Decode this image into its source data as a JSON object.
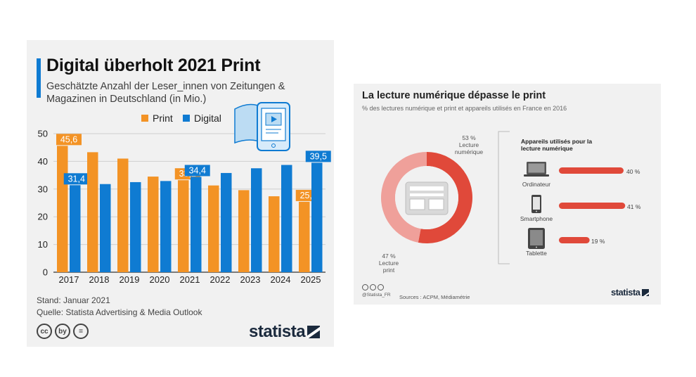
{
  "left": {
    "title": "Digital überholt 2021 Print",
    "subtitle": "Geschätzte Anzahl der Leser_innen von Zeitungen & Magazinen in Deutschland (in Mio.)",
    "legend_print": "Print",
    "legend_digital": "Digital",
    "stand": "Stand: Januar 2021",
    "quelle": "Quelle: Statista Advertising & Media Outlook",
    "brand": "statista",
    "cc_icons": [
      "cc",
      "by",
      "="
    ]
  },
  "right": {
    "title": "La lecture numérique dépasse le print",
    "subtitle": "% des lectures numérique et print et appareils utilisés en France en 2016",
    "digital_pct": "53 %",
    "digital_label_1": "Lecture",
    "digital_label_2": "numérique",
    "print_pct": "47 %",
    "print_label_1": "Lecture",
    "print_label_2": "print",
    "devices_header_1": "Appareils utilisés pour la",
    "devices_header_2": "lecture numérique",
    "handle": "@Statista_FR",
    "sources": "Sources : ACPM, Médiamétrie",
    "brand": "statista"
  },
  "colors": {
    "print": "#f39325",
    "digital": "#0f7bd2",
    "donut_digital": "#e0493a",
    "donut_print": "#efa09a",
    "device_bar": "#e0493a"
  },
  "chart_data": [
    {
      "type": "bar",
      "title": "Digital überholt 2021 Print",
      "categories": [
        "2017",
        "2018",
        "2019",
        "2020",
        "2021",
        "2022",
        "2023",
        "2024",
        "2025"
      ],
      "series": [
        {
          "name": "Print",
          "values": [
            45.6,
            43.3,
            41.0,
            34.5,
            33.2,
            31.3,
            29.6,
            27.4,
            25.4
          ]
        },
        {
          "name": "Digital",
          "values": [
            31.4,
            31.8,
            32.5,
            32.9,
            34.4,
            35.8,
            37.5,
            38.7,
            39.5
          ]
        }
      ],
      "data_labels": {
        "Print": {
          "2017": "45,6",
          "2021": "33,2",
          "2025": "25,4"
        },
        "Digital": {
          "2017": "31,4",
          "2021": "34,4",
          "2025": "39,5"
        }
      },
      "ylim": [
        0,
        50
      ],
      "yticks": [
        0,
        10,
        20,
        30,
        40,
        50
      ],
      "grid": true,
      "legend": "top"
    },
    {
      "type": "pie",
      "slices": [
        {
          "name": "Lecture numérique",
          "value": 53
        },
        {
          "name": "Lecture print",
          "value": 47
        }
      ]
    },
    {
      "type": "bar",
      "title": "Appareils utilisés pour la lecture numérique",
      "categories": [
        "Ordinateur",
        "Smartphone",
        "Tablette"
      ],
      "values": [
        40,
        41,
        19
      ],
      "value_labels": [
        "40 %",
        "41 %",
        "19 %"
      ]
    }
  ]
}
